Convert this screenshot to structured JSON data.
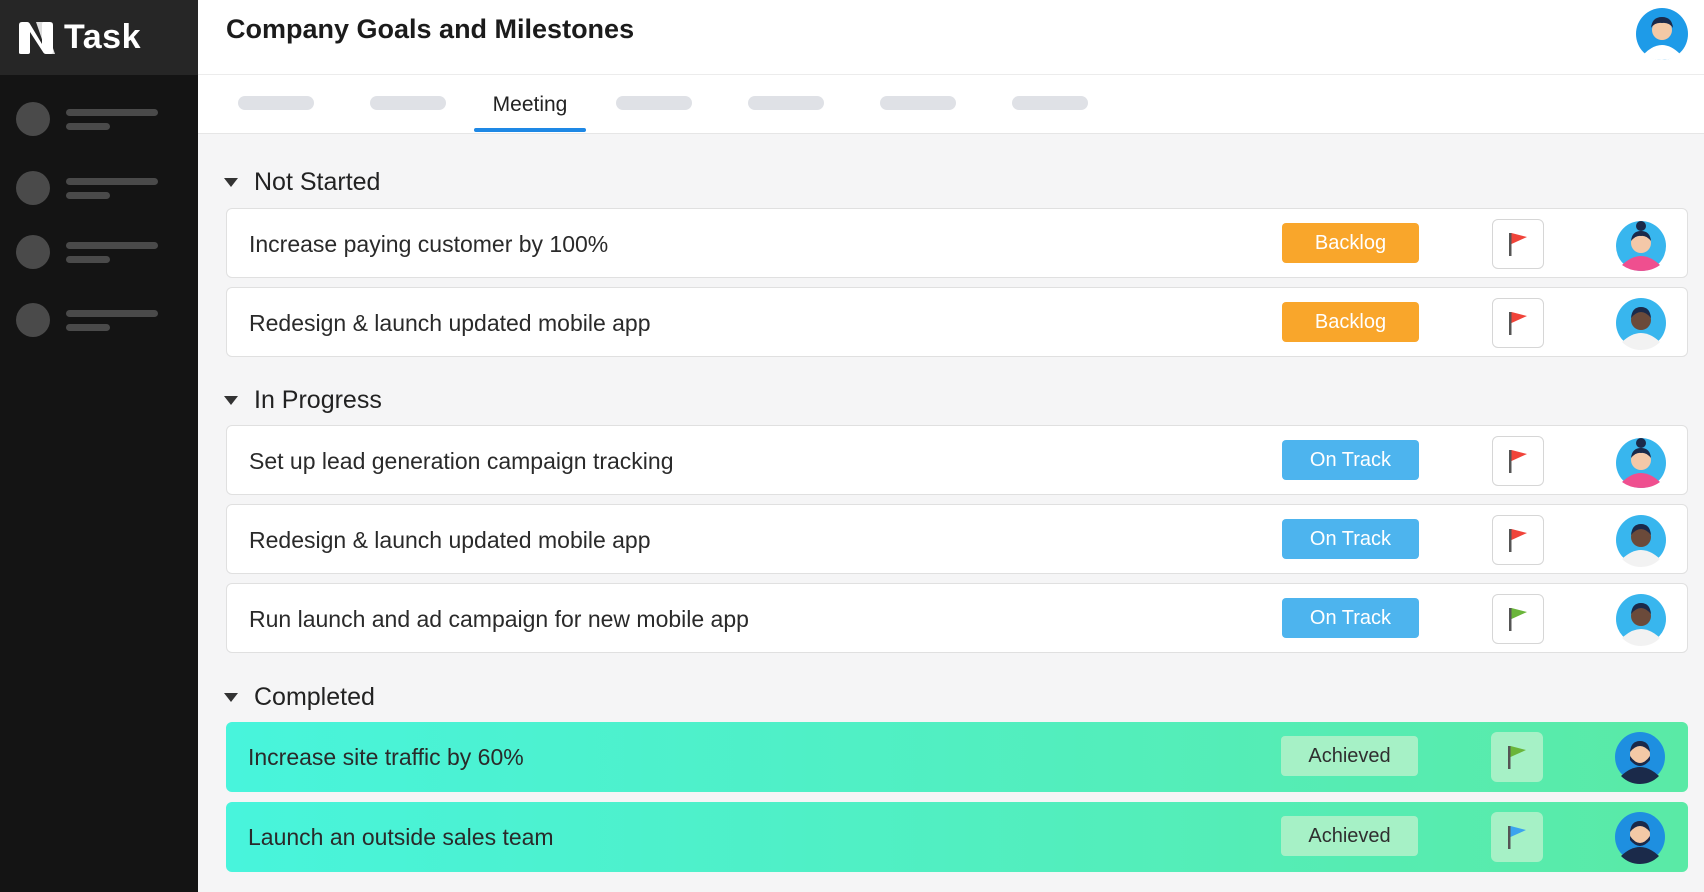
{
  "app": {
    "name": "Task"
  },
  "header": {
    "title": "Company Goals and Milestones"
  },
  "tabs": {
    "active_label": "Meeting"
  },
  "sections": [
    {
      "title": "Not Started",
      "items": [
        {
          "text": "Increase paying customer by 100%",
          "status": "Backlog",
          "flag_color": "#f0443a"
        },
        {
          "text": "Redesign & launch updated mobile app",
          "status": "Backlog",
          "flag_color": "#f0443a"
        }
      ]
    },
    {
      "title": "In Progress",
      "items": [
        {
          "text": "Set up lead generation campaign tracking",
          "status": "On Track",
          "flag_color": "#f0443a"
        },
        {
          "text": "Redesign & launch updated mobile app",
          "status": "On Track",
          "flag_color": "#f0443a"
        },
        {
          "text": "Run launch and ad campaign for new mobile app",
          "status": "On Track",
          "flag_color": "#6ab53a"
        }
      ]
    },
    {
      "title": "Completed",
      "items": [
        {
          "text": "Increase site traffic by 60%",
          "status": "Achieved",
          "flag_color": "#6ab53a"
        },
        {
          "text": "Launch an outside sales team",
          "status": "Achieved",
          "flag_color": "#3ba3ef"
        }
      ]
    }
  ],
  "colors": {
    "backlog": "#f9a62b",
    "on_track": "#4db4ee",
    "achieved": "#a6f1c6",
    "active_tab_underline": "#1e88e5"
  }
}
